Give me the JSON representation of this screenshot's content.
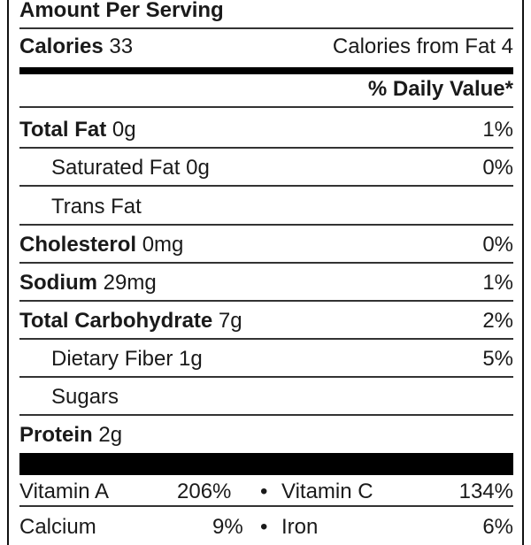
{
  "header": {
    "amount_per_serving": "Amount Per Serving"
  },
  "calories": {
    "label": "Calories",
    "value": "33",
    "from_fat_label": "Calories from Fat",
    "from_fat_value": "4"
  },
  "daily_value_header": "% Daily Value*",
  "nutrients": [
    {
      "label": "Total Fat",
      "amount": "0g",
      "dv": "1%"
    },
    {
      "label": "Saturated Fat",
      "amount": "0g",
      "dv": "0%"
    },
    {
      "label": "Trans Fat",
      "amount": "",
      "dv": ""
    },
    {
      "label": "Cholesterol",
      "amount": "0mg",
      "dv": "0%"
    },
    {
      "label": "Sodium",
      "amount": "29mg",
      "dv": "1%"
    },
    {
      "label": "Total Carbohydrate",
      "amount": "7g",
      "dv": "2%"
    },
    {
      "label": "Dietary Fiber",
      "amount": "1g",
      "dv": "5%"
    },
    {
      "label": "Sugars",
      "amount": "",
      "dv": ""
    },
    {
      "label": "Protein",
      "amount": "2g",
      "dv": ""
    }
  ],
  "vitamins": [
    {
      "left_label": "Vitamin A",
      "left_value": "206%",
      "bullet": "•",
      "right_label": "Vitamin C",
      "right_value": "134%"
    },
    {
      "left_label": "Calcium",
      "left_value": "9%",
      "bullet": "•",
      "right_label": "Iron",
      "right_value": "6%"
    }
  ]
}
